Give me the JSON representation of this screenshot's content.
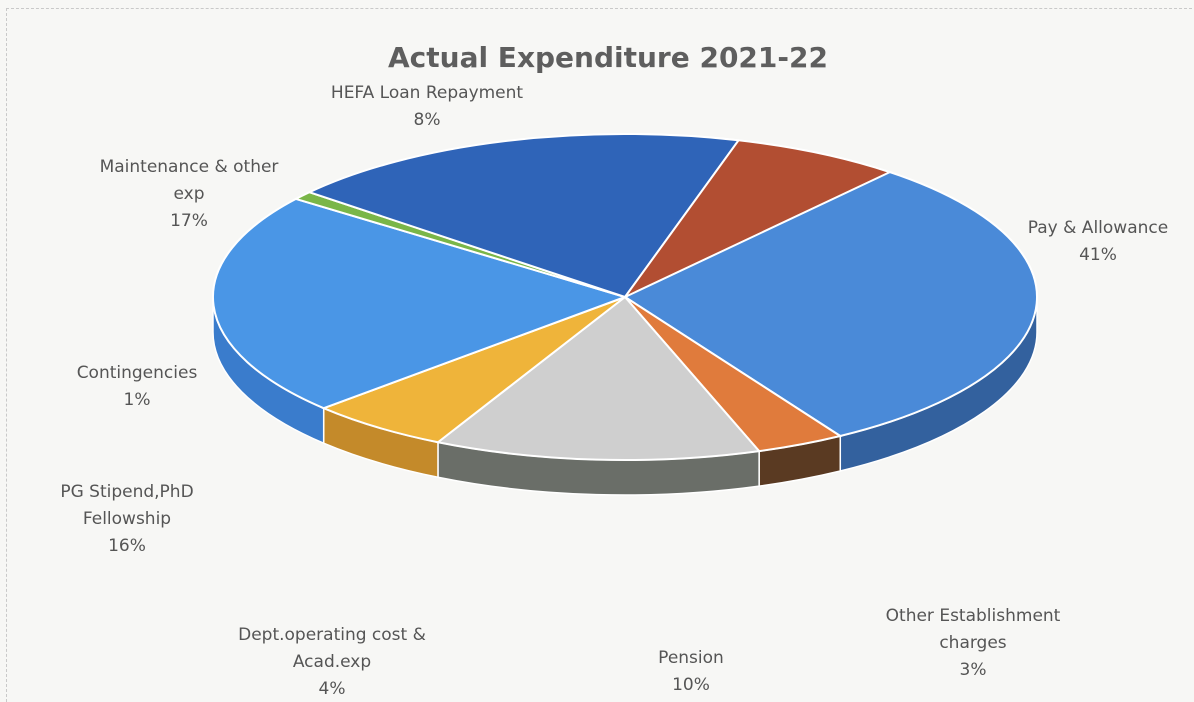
{
  "chart_data": {
    "type": "pie",
    "style": "3d",
    "title": "Actual Expenditure 2021-22",
    "slices": [
      {
        "label_lines": [
          "Pay & Allowance"
        ],
        "pct_label": "41%",
        "value": 41,
        "color": "#4a8ad8",
        "side_color": "#33619e"
      },
      {
        "label_lines": [
          "Other Establishment",
          "charges"
        ],
        "pct_label": "3%",
        "value": 3,
        "color": "#e07b3c",
        "side_color": "#5a3a22"
      },
      {
        "label_lines": [
          "Pension"
        ],
        "pct_label": "10%",
        "value": 10,
        "color": "#cfcfcf",
        "side_color": "#6a6e68"
      },
      {
        "label_lines": [
          "Dept.operating cost &",
          "Acad.exp"
        ],
        "pct_label": "4%",
        "value": 4,
        "color": "#efb43a",
        "side_color": "#c48a2a"
      },
      {
        "label_lines": [
          "PG Stipend,PhD",
          "Fellowship"
        ],
        "pct_label": "16%",
        "value": 16,
        "color": "#4a96e6",
        "side_color": "#3a7ccc"
      },
      {
        "label_lines": [
          "Contingencies"
        ],
        "pct_label": "1%",
        "value": 1,
        "color": "#7ab648",
        "side_color": "#5f8f38"
      },
      {
        "label_lines": [
          "Maintenance & other",
          "exp"
        ],
        "pct_label": "17%",
        "value": 17,
        "color": "#2f64b8",
        "side_color": "#264f90"
      },
      {
        "label_lines": [
          "HEFA Loan Repayment"
        ],
        "pct_label": "8%",
        "value": 8,
        "color": "#b24e32",
        "side_color": "#8a3a25"
      }
    ]
  }
}
